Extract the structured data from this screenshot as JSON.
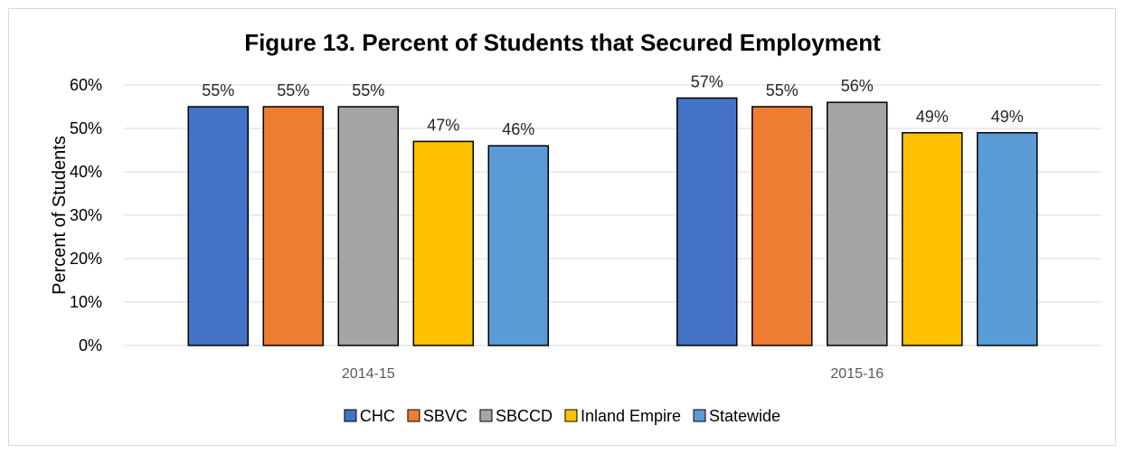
{
  "chart_data": {
    "type": "bar",
    "title": "Figure 13. Percent of Students that Secured Employment",
    "xlabel": "",
    "ylabel": "Percent of Students",
    "categories": [
      "2014-15",
      "2015-16"
    ],
    "series": [
      {
        "name": "CHC",
        "values": [
          55,
          57
        ],
        "labels": [
          "55%",
          "57%"
        ],
        "color": "#4472c4"
      },
      {
        "name": "SBVC",
        "values": [
          55,
          55
        ],
        "labels": [
          "55%",
          "55%"
        ],
        "color": "#ed7d31"
      },
      {
        "name": "SBCCD",
        "values": [
          55,
          56
        ],
        "labels": [
          "55%",
          "56%"
        ],
        "color": "#a5a5a5"
      },
      {
        "name": "Inland Empire",
        "values": [
          47,
          49
        ],
        "labels": [
          "47%",
          "49%"
        ],
        "color": "#ffc000"
      },
      {
        "name": "Statewide",
        "values": [
          46,
          49
        ],
        "labels": [
          "46%",
          "49%"
        ],
        "color": "#5b9bd5"
      }
    ],
    "ylim": [
      0,
      60
    ],
    "yticks": [
      0,
      10,
      20,
      30,
      40,
      50,
      60
    ],
    "ytick_labels": [
      "0%",
      "10%",
      "20%",
      "30%",
      "40%",
      "50%",
      "60%"
    ],
    "grid": true,
    "legend_position": "bottom"
  }
}
